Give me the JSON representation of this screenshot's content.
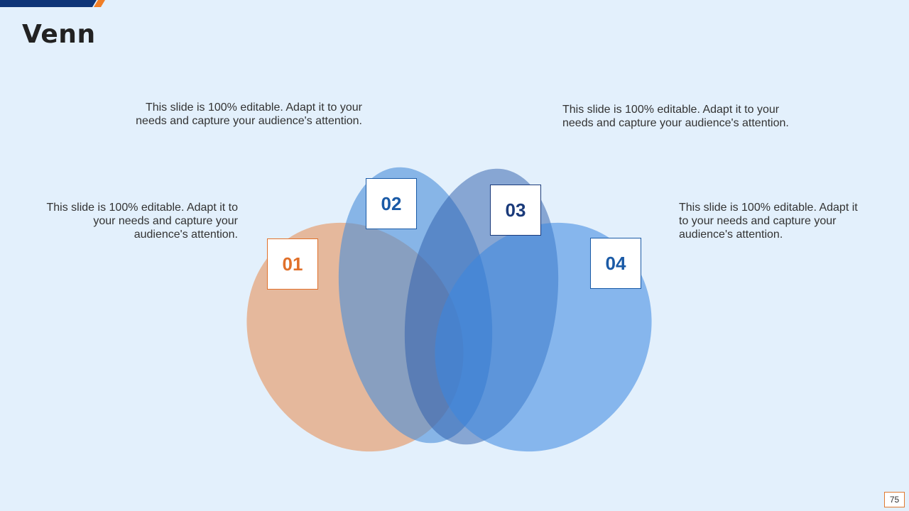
{
  "title": "Venn",
  "petals": [
    {
      "number": "01",
      "color": "#e88a4c",
      "text_color": "#e0702a",
      "description": "This slide is 100% editable. Adapt it to your needs and capture your audience's attention."
    },
    {
      "number": "02",
      "color": "#4a8ed8",
      "text_color": "#1a5aa6",
      "description": "This slide is 100% editable. Adapt it to your needs and capture your audience's attention."
    },
    {
      "number": "03",
      "color": "#2c5caa",
      "text_color": "#1a3a7a",
      "description": "This slide is 100% editable. Adapt it to your needs and capture your audience's attention."
    },
    {
      "number": "04",
      "color": "#3a86e0",
      "text_color": "#1a5aa6",
      "description": "This slide is 100% editable. Adapt it to your needs and capture your audience's attention."
    }
  ],
  "page_number": "75",
  "accent_colors": {
    "navy": "#0e3578",
    "orange": "#f07e26"
  }
}
